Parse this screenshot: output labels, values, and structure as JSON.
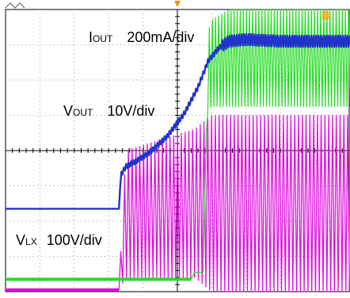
{
  "chart_data": {
    "type": "line",
    "title": "",
    "xlabel": "",
    "ylabel": "",
    "grid": true,
    "grid_divisions": {
      "x": 10,
      "y": 8
    },
    "annotations": [
      {
        "main": "I",
        "sub": "OUT",
        "scale": "200mA/div"
      },
      {
        "main": "V",
        "sub": "OUT",
        "scale": "10V/div"
      },
      {
        "main": "V",
        "sub": "LX",
        "scale": "100V/div"
      }
    ],
    "series": [
      {
        "color": "#2233cc",
        "x": [
          0.0,
          3.3,
          3.35,
          3.5,
          3.8,
          4.2,
          4.7,
          5.2,
          5.6,
          5.9,
          6.2,
          6.5,
          7.0,
          8.0,
          9.0,
          10.0
        ],
        "y": [
          -1.65,
          -1.65,
          -0.7,
          -0.45,
          -0.3,
          -0.05,
          0.4,
          1.05,
          1.8,
          2.55,
          2.9,
          3.1,
          3.15,
          3.1,
          3.1,
          3.1
        ],
        "ripple_div": 0.07
      },
      {
        "color": "#22dd22",
        "x": [
          0.0,
          5.4,
          5.5,
          5.75,
          5.85,
          5.9,
          6.0,
          6.5,
          7.0,
          8.0,
          9.0,
          10.0
        ],
        "y": [
          -3.65,
          -3.65,
          -3.45,
          -3.45,
          0.9,
          1.2,
          1.25,
          1.25,
          1.25,
          1.25,
          1.25,
          1.25
        ],
        "envelope_top_div": [
          0,
          0,
          0,
          0,
          0,
          3.4,
          3.7,
          4.0,
          4.0,
          4.0,
          4.0,
          4.0
        ]
      },
      {
        "color": "#dd11dd",
        "x": [
          0.0,
          3.2,
          3.3,
          3.5,
          5.5,
          6.0,
          7.0,
          8.0,
          9.0,
          10.0
        ],
        "y_low": [
          -3.95,
          -3.95,
          -3.95,
          -3.6,
          -3.6,
          -4.0,
          -4.0,
          -4.0,
          -4.0,
          -4.0
        ],
        "y_high": [
          -3.95,
          -3.95,
          -3.95,
          0.0,
          0.6,
          1.0,
          1.0,
          1.0,
          1.0,
          1.0
        ]
      }
    ],
    "markers": {
      "trigger_color": "#e89020"
    }
  }
}
